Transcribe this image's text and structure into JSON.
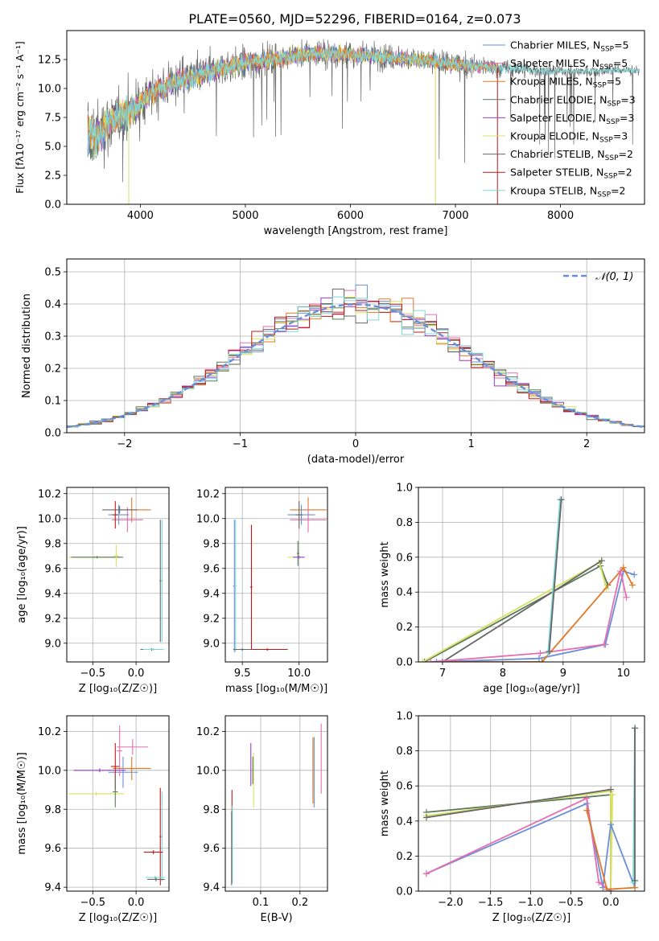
{
  "title": "PLATE=0560, MJD=52296, FIBERID=0164, z=0.073",
  "colors": {
    "chabrier_miles": "#6a8fd8",
    "salpeter_miles": "#e46fb0",
    "kroupa_miles": "#e07828",
    "chabrier_elodie": "#5a7a5a",
    "salpeter_elodie": "#9a3ad0",
    "kroupa_elodie": "#d8e060",
    "chabrier_stelib": "#666666",
    "salpeter_stelib": "#c01818",
    "kroupa_stelib": "#7fd8d8",
    "gaussian": "#6a8fd8"
  },
  "chart_data": [
    {
      "id": "spectrum",
      "type": "line",
      "xlabel": "wavelength [Angstrom, rest frame]",
      "ylabel": "Flux [fλ10⁻¹⁷ erg cm⁻² s⁻¹ A⁻¹]",
      "xlim": [
        3300,
        8800
      ],
      "ylim": [
        0,
        15
      ],
      "xticks": [
        "4000",
        "5000",
        "6000",
        "7000",
        "8000"
      ],
      "yticks": [
        "0.0",
        "2.5",
        "5.0",
        "7.5",
        "10.0",
        "12.5"
      ],
      "legend_position": "right",
      "legend": [
        {
          "label": "Chabrier MILES, N",
          "sub": "SSP",
          "suffix": "=5",
          "color": "chabrier_miles"
        },
        {
          "label": "Salpeter MILES, N",
          "sub": "SSP",
          "suffix": "=5",
          "color": "salpeter_miles"
        },
        {
          "label": "Kroupa MILES, N",
          "sub": "SSP",
          "suffix": "=5",
          "color": "kroupa_miles"
        },
        {
          "label": "Chabrier ELODIE, N",
          "sub": "SSP",
          "suffix": "=3",
          "color": "chabrier_elodie"
        },
        {
          "label": "Salpeter ELODIE, N",
          "sub": "SSP",
          "suffix": "=3",
          "color": "salpeter_elodie"
        },
        {
          "label": "Kroupa ELODIE, N",
          "sub": "SSP",
          "suffix": "=3",
          "color": "kroupa_elodie"
        },
        {
          "label": "Chabrier STELIB, N",
          "sub": "SSP",
          "suffix": "=2",
          "color": "chabrier_stelib"
        },
        {
          "label": "Salpeter STELIB, N",
          "sub": "SSP",
          "suffix": "=2",
          "color": "salpeter_stelib"
        },
        {
          "label": "Kroupa STELIB, N",
          "sub": "SSP",
          "suffix": "=2",
          "color": "kroupa_stelib"
        }
      ],
      "continuum": [
        [
          3500,
          6.0
        ],
        [
          3600,
          6.0
        ],
        [
          3700,
          7.0
        ],
        [
          3800,
          7.5
        ],
        [
          3900,
          8.0
        ],
        [
          4000,
          8.8
        ],
        [
          4100,
          9.5
        ],
        [
          4200,
          10.0
        ],
        [
          4300,
          10.5
        ],
        [
          4500,
          11.0
        ],
        [
          4700,
          11.6
        ],
        [
          5000,
          12.2
        ],
        [
          5300,
          12.6
        ],
        [
          5600,
          13.0
        ],
        [
          5900,
          13.0
        ],
        [
          6200,
          12.8
        ],
        [
          6500,
          12.6
        ],
        [
          6800,
          12.3
        ],
        [
          7100,
          12.0
        ],
        [
          7400,
          11.8
        ],
        [
          7700,
          11.6
        ],
        [
          8000,
          11.5
        ],
        [
          8300,
          11.5
        ],
        [
          8600,
          11.6
        ],
        [
          8750,
          11.5
        ]
      ],
      "noise_amplitude": [
        [
          3500,
          4.0
        ],
        [
          4000,
          2.5
        ],
        [
          4500,
          2.0
        ],
        [
          5500,
          1.6
        ],
        [
          7000,
          1.3
        ],
        [
          8000,
          0.6
        ],
        [
          8700,
          0.6
        ]
      ],
      "model_range": [
        3500,
        7400
      ]
    },
    {
      "id": "residuals",
      "type": "histogram",
      "xlabel": "(data-model)/error",
      "ylabel": "Normed distribution",
      "xlim": [
        -2.5,
        2.5
      ],
      "ylim": [
        0,
        0.54
      ],
      "xticks": [
        "−2",
        "−1",
        "0",
        "1",
        "2"
      ],
      "yticks": [
        "0.0",
        "0.1",
        "0.2",
        "0.3",
        "0.4",
        "0.5"
      ],
      "bin_width": 0.1,
      "reference_curve": "𝒩(0, 1)",
      "legend_position": "top-right"
    },
    {
      "id": "age_vs_Z",
      "type": "errorbar",
      "xlabel": "Z [log₁₀(Z/Z☉)]",
      "ylabel": "age  [log₁₀(age/yr)]",
      "xlim": [
        -0.8,
        0.38
      ],
      "ylim": [
        8.85,
        10.25
      ],
      "xticks": [
        "−0.5",
        "0.0"
      ],
      "yticks": [
        "9.0",
        "9.2",
        "9.4",
        "9.6",
        "9.8",
        "10.0",
        "10.2"
      ],
      "points": [
        {
          "x": -0.05,
          "y": 10.07,
          "xe": 0.22,
          "ye": 0.1,
          "color": "kroupa_miles"
        },
        {
          "x": -0.1,
          "y": 9.99,
          "xe": 0.18,
          "ye": 0.1,
          "color": "salpeter_miles"
        },
        {
          "x": -0.2,
          "y": 10.03,
          "xe": 0.12,
          "ye": 0.08,
          "color": "chabrier_miles"
        },
        {
          "x": -0.24,
          "y": 10.03,
          "xe": 0.03,
          "ye": 0.11,
          "color": "salpeter_stelib"
        },
        {
          "x": -0.19,
          "y": 10.07,
          "xe": 0.2,
          "ye": 0.03,
          "color": "chabrier_stelib"
        },
        {
          "x": -0.48,
          "y": 9.69,
          "xe": 0.3,
          "ye": 0.01,
          "color": "kroupa_elodie"
        },
        {
          "x": -0.45,
          "y": 9.69,
          "xe": 0.3,
          "ye": 0.01,
          "color": "chabrier_elodie"
        },
        {
          "x": -0.23,
          "y": 9.7,
          "xe": 0.03,
          "ye": 0.09,
          "color": "kroupa_elodie"
        },
        {
          "x": 0.28,
          "y": 9.5,
          "xe": 0.01,
          "ye": 0.49,
          "color": "chabrier_stelib"
        },
        {
          "x": 0.3,
          "y": 9.5,
          "xe": 0.01,
          "ye": 0.49,
          "color": "kroupa_stelib"
        },
        {
          "x": 0.18,
          "y": 8.95,
          "xe": 0.13,
          "ye": 0.01,
          "color": "chabrier_stelib"
        },
        {
          "x": 0.2,
          "y": 8.95,
          "xe": 0.12,
          "ye": 0.01,
          "color": "kroupa_stelib"
        }
      ]
    },
    {
      "id": "age_vs_mass",
      "type": "errorbar",
      "xlabel": "mass [log₁₀(M/M☉)]",
      "ylabel": "",
      "xlim": [
        9.35,
        10.25
      ],
      "ylim": [
        8.85,
        10.25
      ],
      "xticks": [
        "9.5",
        "10.0"
      ],
      "yticks": [
        "9.0",
        "9.2",
        "9.4",
        "9.6",
        "9.8",
        "10.0",
        "10.2"
      ],
      "points": [
        {
          "x": 10.08,
          "y": 10.07,
          "xe": 0.16,
          "ye": 0.1,
          "color": "kroupa_miles"
        },
        {
          "x": 10.08,
          "y": 9.99,
          "xe": 0.16,
          "ye": 0.1,
          "color": "salpeter_miles"
        },
        {
          "x": 10.02,
          "y": 10.03,
          "xe": 0.12,
          "ye": 0.08,
          "color": "chabrier_miles"
        },
        {
          "x": 10.0,
          "y": 10.03,
          "xe": 0.03,
          "ye": 0.11,
          "color": "chabrier_stelib"
        },
        {
          "x": 9.95,
          "y": 9.69,
          "xe": 0.05,
          "ye": 0.01,
          "color": "kroupa_elodie"
        },
        {
          "x": 10.0,
          "y": 9.69,
          "xe": 0.05,
          "ye": 0.01,
          "color": "salpeter_elodie"
        },
        {
          "x": 9.99,
          "y": 9.72,
          "xe": 0.01,
          "ye": 0.1,
          "color": "chabrier_elodie"
        },
        {
          "x": 9.43,
          "y": 9.46,
          "xe": 0.01,
          "ye": 0.53,
          "color": "chabrier_miles"
        },
        {
          "x": 9.44,
          "y": 9.46,
          "xe": 0.01,
          "ye": 0.53,
          "color": "kroupa_stelib"
        },
        {
          "x": 9.58,
          "y": 9.45,
          "xe": 0.01,
          "ye": 0.5,
          "color": "salpeter_stelib"
        },
        {
          "x": 9.72,
          "y": 8.95,
          "xe": 0.18,
          "ye": 0.01,
          "color": "salpeter_stelib"
        },
        {
          "x": 9.5,
          "y": 8.95,
          "xe": 0.08,
          "ye": 0.01,
          "color": "chabrier_stelib"
        }
      ]
    },
    {
      "id": "massweight_vs_age",
      "type": "line",
      "xlabel": "age  [log₁₀(age/yr)]",
      "ylabel": "mass weight",
      "xlim": [
        6.6,
        10.35
      ],
      "ylim": [
        0,
        1.0
      ],
      "xticks": [
        "7",
        "8",
        "9",
        "10"
      ],
      "yticks": [
        "0.0",
        "0.2",
        "0.4",
        "0.6",
        "0.8",
        "1.0"
      ],
      "series": [
        {
          "color": "chabrier_elodie",
          "x": [
            6.7,
            9.62,
            9.74
          ],
          "y": [
            0.0,
            0.55,
            0.44
          ]
        },
        {
          "color": "kroupa_elodie",
          "x": [
            6.67,
            9.6,
            9.72
          ],
          "y": [
            0.0,
            0.57,
            0.42
          ]
        },
        {
          "color": "chabrier_stelib",
          "x": [
            7.0,
            9.64
          ],
          "y": [
            0.0,
            0.58
          ]
        },
        {
          "color": "chabrier_miles",
          "x": [
            6.9,
            8.6,
            9.7,
            10.0,
            10.18
          ],
          "y": [
            0.0,
            0.02,
            0.1,
            0.52,
            0.5
          ]
        },
        {
          "color": "kroupa_miles",
          "x": [
            6.8,
            8.65,
            10.0,
            10.15
          ],
          "y": [
            0.0,
            0.0,
            0.54,
            0.44
          ]
        },
        {
          "color": "salpeter_miles",
          "x": [
            6.8,
            8.62,
            9.68,
            9.95,
            10.05
          ],
          "y": [
            0.0,
            0.05,
            0.1,
            0.52,
            0.37
          ]
        },
        {
          "color": "kroupa_stelib",
          "x": [
            8.75,
            8.95
          ],
          "y": [
            0.05,
            0.93
          ]
        },
        {
          "color": "chabrier_stelib",
          "x": [
            8.77,
            8.97
          ],
          "y": [
            0.06,
            0.93
          ]
        }
      ]
    },
    {
      "id": "mass_vs_Z",
      "type": "errorbar",
      "xlabel": "Z [log₁₀(Z/Z☉)]",
      "ylabel": "mass [log₁₀(M/M☉)]",
      "xlim": [
        -0.8,
        0.38
      ],
      "ylim": [
        9.38,
        10.28
      ],
      "xticks": [
        "−0.5",
        "0.0"
      ],
      "yticks": [
        "9.4",
        "9.6",
        "9.8",
        "10.0",
        "10.2"
      ],
      "points": [
        {
          "x": -0.05,
          "y": 10.01,
          "xe": 0.22,
          "ye": 0.06,
          "color": "kroupa_miles"
        },
        {
          "x": -0.04,
          "y": 10.12,
          "xe": 0.18,
          "ye": 0.04,
          "color": "salpeter_miles"
        },
        {
          "x": -0.15,
          "y": 9.99,
          "xe": 0.17,
          "ye": 0.08,
          "color": "chabrier_miles"
        },
        {
          "x": -0.42,
          "y": 10.0,
          "xe": 0.3,
          "ye": 0.01,
          "color": "salpeter_elodie"
        },
        {
          "x": -0.24,
          "y": 10.02,
          "xe": 0.05,
          "ye": 0.12,
          "color": "salpeter_stelib"
        },
        {
          "x": -0.19,
          "y": 10.1,
          "xe": 0.03,
          "ye": 0.13,
          "color": "salpeter_miles"
        },
        {
          "x": -0.46,
          "y": 9.88,
          "xe": 0.32,
          "ye": 0.01,
          "color": "kroupa_elodie"
        },
        {
          "x": -0.24,
          "y": 9.89,
          "xe": 0.03,
          "ye": 0.08,
          "color": "chabrier_elodie"
        },
        {
          "x": 0.3,
          "y": 9.66,
          "xe": 0.01,
          "ye": 0.23,
          "color": "kroupa_stelib"
        },
        {
          "x": 0.28,
          "y": 9.66,
          "xe": 0.01,
          "ye": 0.25,
          "color": "salpeter_stelib"
        },
        {
          "x": 0.2,
          "y": 9.58,
          "xe": 0.11,
          "ye": 0.01,
          "color": "salpeter_stelib"
        },
        {
          "x": 0.22,
          "y": 9.45,
          "xe": 0.11,
          "ye": 0.01,
          "color": "kroupa_stelib"
        },
        {
          "x": 0.23,
          "y": 9.44,
          "xe": 0.1,
          "ye": 0.01,
          "color": "chabrier_stelib"
        }
      ]
    },
    {
      "id": "mass_vs_ebv",
      "type": "errorbar",
      "xlabel": "E(B-V)",
      "ylabel": "",
      "xlim": [
        0.01,
        0.27
      ],
      "ylim": [
        9.38,
        10.28
      ],
      "xticks": [
        "0.1",
        "0.2"
      ],
      "yticks": [
        "9.4",
        "9.6",
        "9.8",
        "10.0",
        "10.2"
      ],
      "points": [
        {
          "x": 0.027,
          "y": 9.66,
          "xe": 0.0,
          "ye": 0.24,
          "color": "salpeter_stelib"
        },
        {
          "x": 0.028,
          "y": 9.62,
          "xe": 0.0,
          "ye": 0.2,
          "color": "kroupa_stelib"
        },
        {
          "x": 0.026,
          "y": 9.6,
          "xe": 0.0,
          "ye": 0.19,
          "color": "chabrier_stelib"
        },
        {
          "x": 0.075,
          "y": 10.03,
          "xe": 0.0,
          "ye": 0.11,
          "color": "salpeter_elodie"
        },
        {
          "x": 0.082,
          "y": 9.95,
          "xe": 0.0,
          "ye": 0.14,
          "color": "kroupa_elodie"
        },
        {
          "x": 0.08,
          "y": 10.0,
          "xe": 0.0,
          "ye": 0.07,
          "color": "chabrier_elodie"
        },
        {
          "x": 0.233,
          "y": 10.0,
          "xe": 0.0,
          "ye": 0.17,
          "color": "kroupa_miles"
        },
        {
          "x": 0.236,
          "y": 9.99,
          "xe": 0.0,
          "ye": 0.18,
          "color": "chabrier_miles"
        },
        {
          "x": 0.254,
          "y": 10.06,
          "xe": 0.0,
          "ye": 0.18,
          "color": "salpeter_miles"
        }
      ]
    },
    {
      "id": "massweight_vs_Z",
      "type": "line",
      "xlabel": "Z [log₁₀(Z/Z☉)]",
      "ylabel": "mass weight",
      "xlim": [
        -2.4,
        0.42
      ],
      "ylim": [
        0,
        1.0
      ],
      "xticks": [
        "−2.0",
        "−1.5",
        "−1.0",
        "−0.5",
        "0.0"
      ],
      "yticks": [
        "0.0",
        "0.2",
        "0.4",
        "0.6",
        "0.8",
        "1.0"
      ],
      "series": [
        {
          "color": "chabrier_elodie",
          "x": [
            -2.3,
            0.0,
            0.0
          ],
          "y": [
            0.45,
            0.55,
            0.0
          ]
        },
        {
          "color": "kroupa_elodie",
          "x": [
            -2.3,
            0.0,
            0.0,
            0.02
          ],
          "y": [
            0.43,
            0.57,
            0.01,
            0.55
          ]
        },
        {
          "color": "chabrier_stelib",
          "x": [
            -2.3,
            0.0
          ],
          "y": [
            0.42,
            0.58
          ]
        },
        {
          "color": "chabrier_miles",
          "x": [
            -2.3,
            -0.3,
            -0.1,
            0.0,
            0.3,
            0.3
          ],
          "y": [
            0.1,
            0.5,
            0.02,
            0.38,
            0.02,
            0.06
          ]
        },
        {
          "color": "salpeter_miles",
          "x": [
            -2.3,
            -0.3,
            -0.15,
            0.0
          ],
          "y": [
            0.1,
            0.53,
            0.05,
            0.0
          ]
        },
        {
          "color": "kroupa_miles",
          "x": [
            -0.3,
            -0.05,
            0.3
          ],
          "y": [
            0.46,
            0.01,
            0.02
          ]
        },
        {
          "color": "kroupa_stelib",
          "x": [
            0.28,
            0.3
          ],
          "y": [
            0.05,
            0.93
          ]
        },
        {
          "color": "chabrier_stelib",
          "x": [
            0.3,
            0.3
          ],
          "y": [
            0.06,
            0.93
          ]
        }
      ]
    }
  ]
}
